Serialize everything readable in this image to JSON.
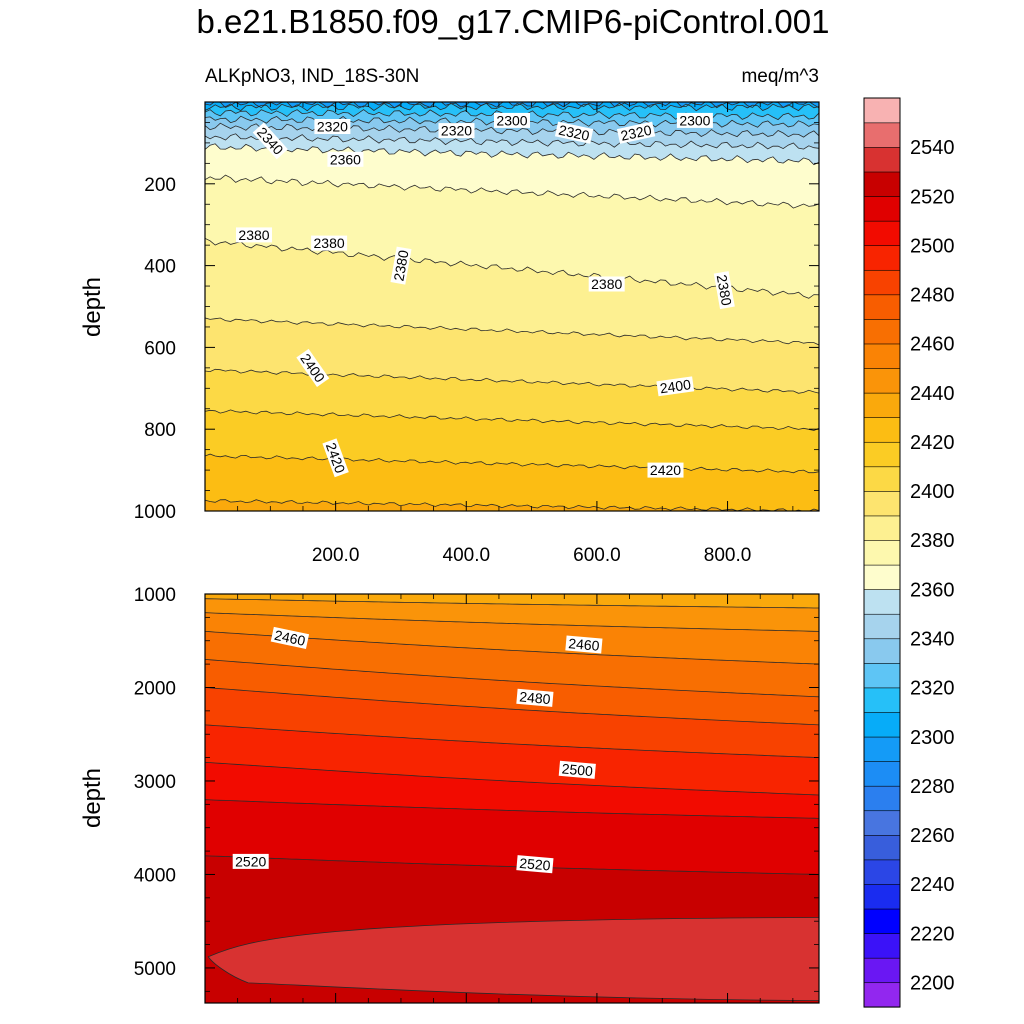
{
  "chart_data": {
    "type": "heatmap",
    "title": "b.e21.B1850.f09_g17.CMIP6-piControl.001",
    "subtitle_left": "ALKpNO3, IND_18S-30N",
    "subtitle_right": "meq/m^3",
    "ylabel": "depth",
    "x_tick_labels": [
      "200.0",
      "400.0",
      "600.0",
      "800.0"
    ],
    "x_ticks": [
      200,
      400,
      600,
      800
    ],
    "xlim": [
      0,
      940
    ],
    "panels": [
      {
        "name": "upper",
        "ylim": [
          0,
          1000
        ],
        "y_ticks": [
          200,
          400,
          600,
          800,
          1000
        ],
        "y_tick_labels": [
          "200",
          "400",
          "600",
          "800",
          "1000"
        ],
        "bands": [
          {
            "level": 2300,
            "left": 5,
            "right": 5
          },
          {
            "level": 2310,
            "left": 12,
            "right": 12
          },
          {
            "level": 2320,
            "left": 25,
            "right": 35
          },
          {
            "level": 2330,
            "left": 42,
            "right": 55
          },
          {
            "level": 2340,
            "left": 60,
            "right": 80
          },
          {
            "level": 2350,
            "left": 85,
            "right": 110
          },
          {
            "level": 2360,
            "left": 110,
            "right": 145
          },
          {
            "level": 2370,
            "left": 185,
            "right": 255
          },
          {
            "level": 2380,
            "left": 340,
            "right": 475
          },
          {
            "level": 2390,
            "left": 530,
            "right": 590
          },
          {
            "level": 2400,
            "left": 655,
            "right": 710
          },
          {
            "level": 2410,
            "left": 755,
            "right": 800
          },
          {
            "level": 2420,
            "left": 865,
            "right": 905
          },
          {
            "level": 2430,
            "left": 975,
            "right": 1000
          }
        ],
        "labels": [
          {
            "text": "2320",
            "x": 195,
            "y": 60,
            "rot": 0
          },
          {
            "text": "2320",
            "x": 385,
            "y": 70,
            "rot": 0
          },
          {
            "text": "2300",
            "x": 470,
            "y": 45,
            "rot": 0
          },
          {
            "text": "2320",
            "x": 565,
            "y": 75,
            "rot": 12
          },
          {
            "text": "2320",
            "x": 660,
            "y": 75,
            "rot": -12
          },
          {
            "text": "2300",
            "x": 750,
            "y": 45,
            "rot": 0
          },
          {
            "text": "2340",
            "x": 100,
            "y": 95,
            "rot": 48
          },
          {
            "text": "2360",
            "x": 215,
            "y": 140,
            "rot": 0
          },
          {
            "text": "2380",
            "x": 75,
            "y": 325,
            "rot": 0
          },
          {
            "text": "2380",
            "x": 190,
            "y": 345,
            "rot": 0
          },
          {
            "text": "2380",
            "x": 300,
            "y": 400,
            "rot": -80
          },
          {
            "text": "2380",
            "x": 615,
            "y": 445,
            "rot": 0
          },
          {
            "text": "2380",
            "x": 795,
            "y": 460,
            "rot": 80
          },
          {
            "text": "2400",
            "x": 165,
            "y": 650,
            "rot": 55
          },
          {
            "text": "2400",
            "x": 720,
            "y": 695,
            "rot": -8
          },
          {
            "text": "2420",
            "x": 200,
            "y": 870,
            "rot": 70
          },
          {
            "text": "2420",
            "x": 705,
            "y": 900,
            "rot": 0
          }
        ]
      },
      {
        "name": "lower",
        "ylim": [
          1000,
          5375
        ],
        "y_ticks": [
          1000,
          2000,
          3000,
          4000,
          5000
        ],
        "y_tick_labels": [
          "1000",
          "2000",
          "3000",
          "4000",
          "5000"
        ],
        "bands": [
          {
            "level": 2440,
            "left": 1050,
            "right": 1150
          },
          {
            "level": 2450,
            "left": 1200,
            "right": 1400
          },
          {
            "level": 2460,
            "left": 1400,
            "right": 1750
          },
          {
            "level": 2470,
            "left": 1700,
            "right": 2100
          },
          {
            "level": 2480,
            "left": 2000,
            "right": 2400
          },
          {
            "level": 2490,
            "left": 2400,
            "right": 2750
          },
          {
            "level": 2500,
            "left": 2800,
            "right": 3150
          },
          {
            "level": 2510,
            "left": 3200,
            "right": 3400
          },
          {
            "level": 2520,
            "left": 3800,
            "right": 4000
          }
        ],
        "core": {
          "level": 2530,
          "tip_x": 5,
          "tip_depth": 4880,
          "top_right": 4460,
          "bottom_right": 5350
        },
        "labels": [
          {
            "text": "2460",
            "x": 130,
            "y": 1470,
            "rot": 12
          },
          {
            "text": "2460",
            "x": 580,
            "y": 1540,
            "rot": 5
          },
          {
            "text": "2480",
            "x": 505,
            "y": 2110,
            "rot": 5
          },
          {
            "text": "2500",
            "x": 570,
            "y": 2880,
            "rot": 5
          },
          {
            "text": "2520",
            "x": 70,
            "y": 3860,
            "rot": 0
          },
          {
            "text": "2520",
            "x": 505,
            "y": 3890,
            "rot": 5
          }
        ]
      }
    ],
    "colorbar": {
      "levels": [
        2200,
        2210,
        2220,
        2230,
        2240,
        2250,
        2260,
        2270,
        2280,
        2290,
        2300,
        2310,
        2320,
        2330,
        2340,
        2350,
        2360,
        2370,
        2380,
        2390,
        2400,
        2410,
        2420,
        2430,
        2440,
        2450,
        2460,
        2470,
        2480,
        2490,
        2500,
        2510,
        2520,
        2530,
        2540,
        2550
      ],
      "colors": [
        "#9227ef",
        "#6a17f3",
        "#3b12f8",
        "#0000ff",
        "#1a2cf0",
        "#2b46e6",
        "#385edc",
        "#4875e0",
        "#2b7fef",
        "#1c8df5",
        "#149bf7",
        "#07acf8",
        "#26c0f8",
        "#5ec5f5",
        "#89c9ee",
        "#a6d3ed",
        "#bde1f1",
        "#fefdcd",
        "#fdf8ae",
        "#fdf091",
        "#fde46f",
        "#fcd945",
        "#fbcc24",
        "#fcbd13",
        "#faa90c",
        "#fa9409",
        "#fa8305",
        "#f86f02",
        "#f85d00",
        "#f84200",
        "#f82400",
        "#f20b00",
        "#e00000",
        "#c80000",
        "#d83231",
        "#e86e6e",
        "#f8b2b2"
      ],
      "tick_labels": [
        "2200",
        "2220",
        "2240",
        "2260",
        "2280",
        "2300",
        "2320",
        "2340",
        "2360",
        "2380",
        "2400",
        "2420",
        "2440",
        "2460",
        "2480",
        "2500",
        "2520",
        "2540"
      ]
    }
  }
}
